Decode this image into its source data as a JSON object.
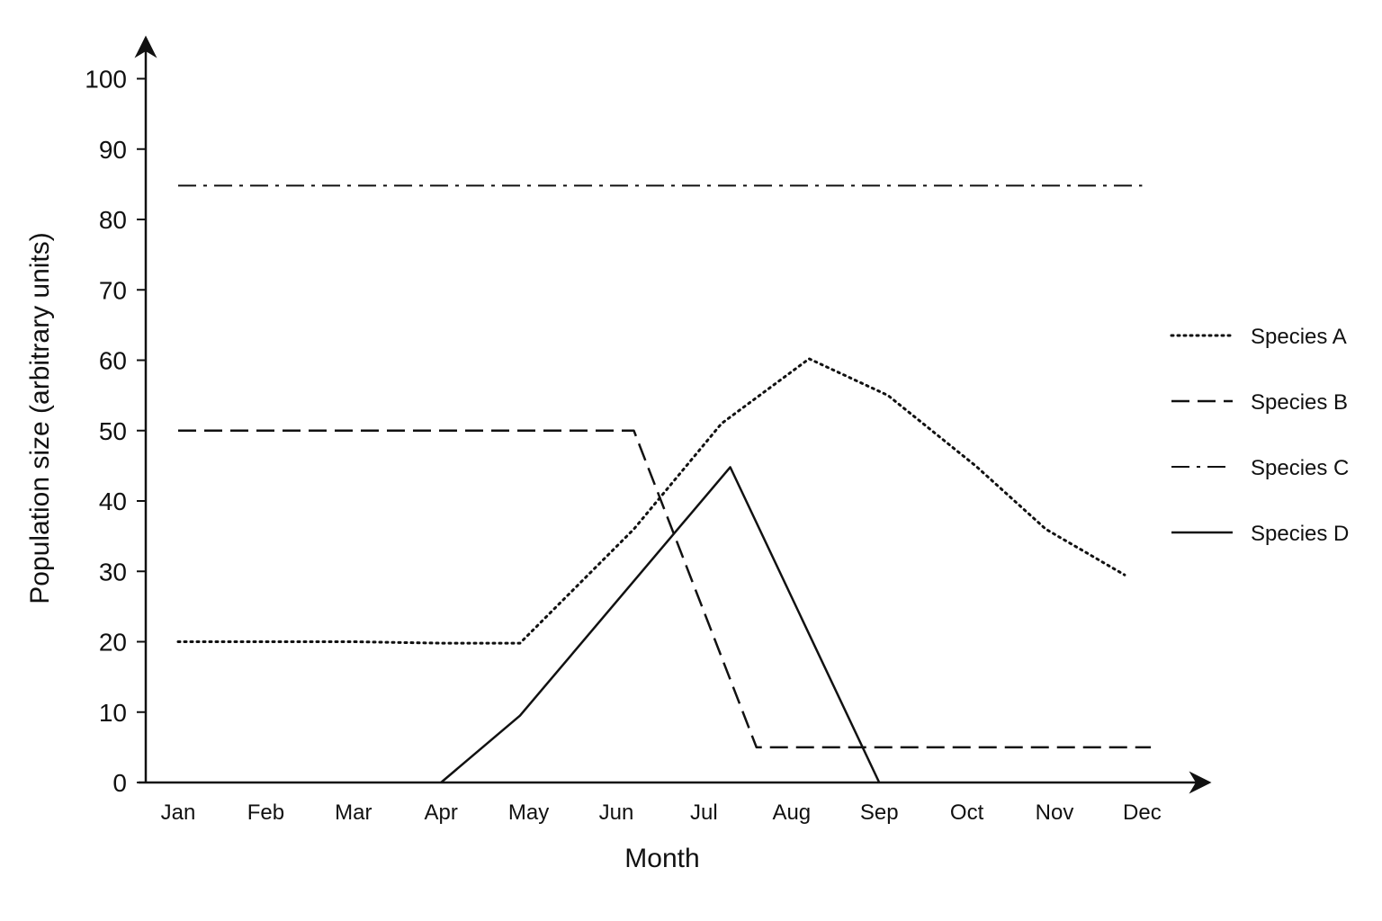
{
  "chart_data": {
    "type": "line",
    "title": "",
    "xlabel": "Month",
    "ylabel": "Population size (arbitrary units)",
    "categories": [
      "Jan",
      "Feb",
      "Mar",
      "Apr",
      "May",
      "Jun",
      "Jul",
      "Aug",
      "Sep",
      "Oct",
      "Nov",
      "Dec"
    ],
    "ylim": [
      0,
      100
    ],
    "yticks": [
      0,
      10,
      20,
      30,
      40,
      50,
      60,
      70,
      80,
      90,
      100
    ],
    "grid": false,
    "legend_position": "right",
    "series": [
      {
        "name": "Species A",
        "style": "dotted",
        "points": [
          [
            1,
            20
          ],
          [
            2,
            20
          ],
          [
            3,
            20
          ],
          [
            4,
            19.8
          ],
          [
            4.9,
            19.8
          ],
          [
            6.2,
            36
          ],
          [
            7.2,
            51
          ],
          [
            8.2,
            60.2
          ],
          [
            9.1,
            55
          ],
          [
            10.1,
            45
          ],
          [
            10.9,
            36
          ],
          [
            11.8,
            29.5
          ]
        ]
      },
      {
        "name": "Species B",
        "style": "dashed",
        "points": [
          [
            1,
            50
          ],
          [
            6.2,
            50
          ],
          [
            7.6,
            5
          ],
          [
            12.1,
            5
          ]
        ]
      },
      {
        "name": "Species C",
        "style": "dashdot",
        "points": [
          [
            1,
            84.8
          ],
          [
            12.0,
            84.8
          ]
        ]
      },
      {
        "name": "Species D",
        "style": "solid",
        "points": [
          [
            4,
            0
          ],
          [
            4.9,
            9.5
          ],
          [
            7.3,
            44.8
          ],
          [
            9.0,
            0
          ]
        ]
      }
    ]
  }
}
